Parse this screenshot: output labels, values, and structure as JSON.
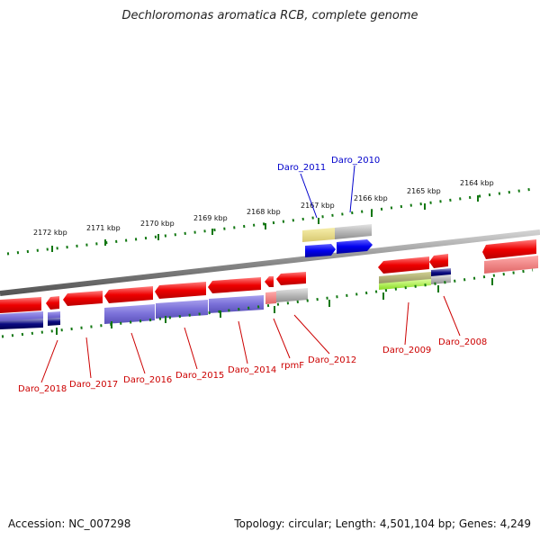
{
  "title": "Dechloromonas aromatica RCB, complete genome",
  "footer": {
    "accession": "Accession: NC_007298",
    "topology": "Topology: circular; Length: 4,501,104 bp; Genes: 4,249"
  },
  "ruler": {
    "labels": [
      "2172 kbp",
      "2171 kbp",
      "2170 kbp",
      "2169 kbp",
      "2168 kbp",
      "2167 kbp",
      "2166 kbp",
      "2165 kbp",
      "2164 kbp"
    ]
  },
  "genes": {
    "blue": [
      "Daro_2011",
      "Daro_2010"
    ],
    "red": [
      "Daro_2018",
      "Daro_2017",
      "Daro_2016",
      "Daro_2015",
      "Daro_2014",
      "rpmF",
      "Daro_2012",
      "Daro_2009",
      "Daro_2008"
    ]
  },
  "colors": {
    "red_gene": "#ee0000",
    "blue_gene": "#0000ee",
    "purple_track": "#7a70d8",
    "navy_track": "#0a0a80",
    "tick_green": "#117711",
    "backbone_gray": "#888888"
  }
}
